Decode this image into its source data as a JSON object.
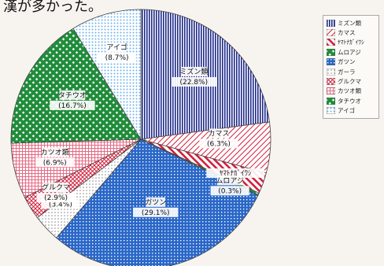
{
  "caption": "漢が多かった。",
  "colors": {
    "navy": "#1f2a8a",
    "red": "#d21e3c",
    "green": "#1f8c3a",
    "blue": "#2a67c8",
    "lightblue": "#6fb1e8",
    "grey": "#8a8a8a"
  },
  "chart_data": {
    "type": "pie",
    "title": "",
    "slices": [
      {
        "name": "ミズン類",
        "label": "ミズン類",
        "pct_text": "(22.8%)",
        "value": 22.8,
        "pattern": "vstripe-navy"
      },
      {
        "name": "カマス",
        "label": "カマス",
        "pct_text": "(6.3%)",
        "value": 6.3,
        "pattern": "hatch-red"
      },
      {
        "name": "ﾔﾏﾄﾅｶﾞｲﾜｼ",
        "label": "ﾔﾏﾄﾅｶﾞｲﾜｼ",
        "pct_text": "",
        "value": 2.6,
        "pattern": "diag-red"
      },
      {
        "name": "ムロアジ",
        "label": "ムロアジ",
        "pct_text": "(0.3%)",
        "value": 0.3,
        "pattern": "lattice-green"
      },
      {
        "name": "ガツン",
        "label": "ガツン",
        "pct_text": "(29.1%)",
        "value": 29.1,
        "pattern": "grid-blue"
      },
      {
        "name": "ガーラ",
        "label": "ラ",
        "pct_text": "(3.4%)",
        "value": 3.4,
        "pattern": "dots-grey"
      },
      {
        "name": "グルクマ",
        "label": "グルクマ",
        "pct_text": "(2.9%)",
        "value": 2.9,
        "pattern": "cross-red"
      },
      {
        "name": "カツオ類",
        "label": "カツオ類",
        "pct_text": "(6.9%)",
        "value": 6.9,
        "pattern": "grid-pink"
      },
      {
        "name": "タチウオ",
        "label": "タチウオ",
        "pct_text": "(16.7%)",
        "value": 16.7,
        "pattern": "lattice-green"
      },
      {
        "name": "アイゴ",
        "label": "アイゴ",
        "pct_text": "(8.7%)",
        "value": 8.7,
        "pattern": "dots-lightblue"
      }
    ],
    "legend": [
      {
        "label": "ミズン類",
        "pattern": "vstripe-navy"
      },
      {
        "label": "カマス",
        "pattern": "hatch-red"
      },
      {
        "label": "ﾔﾏﾄﾅｶﾞｲﾜｼ",
        "pattern": "diag-red"
      },
      {
        "label": "ムロアジ",
        "pattern": "lattice-green"
      },
      {
        "label": "ガツン",
        "pattern": "grid-blue"
      },
      {
        "label": "ガーラ",
        "pattern": "dots-grey"
      },
      {
        "label": "グルクマ",
        "pattern": "cross-red"
      },
      {
        "label": "カツオ類",
        "pattern": "grid-pink"
      },
      {
        "label": "タチウオ",
        "pattern": "lattice-green"
      },
      {
        "label": "アイゴ",
        "pattern": "dots-lightblue"
      }
    ],
    "legend_position": "right"
  }
}
